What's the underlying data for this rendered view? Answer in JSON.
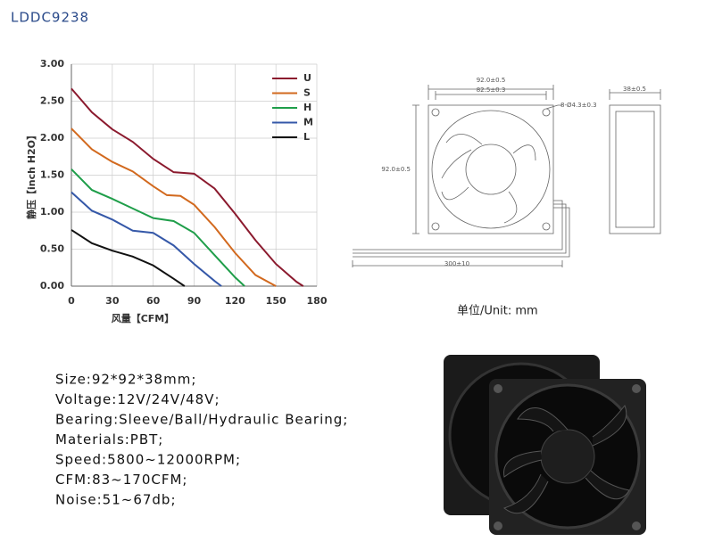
{
  "header": {
    "title": "LDDC9238"
  },
  "chart_data": {
    "type": "line",
    "xlabel": "风量【CFM】",
    "ylabel": "静压【inch H2O】",
    "xlim": [
      0,
      180
    ],
    "xticks": [
      0,
      30,
      60,
      90,
      120,
      150,
      180
    ],
    "ylim": [
      0,
      3
    ],
    "yticks": [
      {
        "value": 0,
        "label": "0.00"
      },
      {
        "value": 0.5,
        "label": "0.50"
      },
      {
        "value": 1,
        "label": "1.00"
      },
      {
        "value": 1.5,
        "label": "1.50"
      },
      {
        "value": 2,
        "label": "2.00"
      },
      {
        "value": 2.5,
        "label": "2.50"
      },
      {
        "value": 3,
        "label": "3.00"
      }
    ],
    "grid": true,
    "series": [
      {
        "name": "U",
        "color": "#8b1a2e",
        "x": [
          0,
          15,
          30,
          45,
          60,
          75,
          90,
          105,
          120,
          135,
          150,
          165,
          170
        ],
        "values": [
          2.67,
          2.35,
          2.12,
          1.95,
          1.72,
          1.54,
          1.52,
          1.32,
          0.98,
          0.62,
          0.3,
          0.06,
          0
        ]
      },
      {
        "name": "S",
        "color": "#d2691e",
        "x": [
          0,
          15,
          30,
          45,
          60,
          70,
          80,
          90,
          105,
          120,
          135,
          150
        ],
        "values": [
          2.13,
          1.85,
          1.68,
          1.55,
          1.35,
          1.23,
          1.22,
          1.1,
          0.8,
          0.45,
          0.15,
          0
        ]
      },
      {
        "name": "H",
        "color": "#1f9e4a",
        "x": [
          0,
          15,
          30,
          45,
          60,
          75,
          90,
          105,
          120,
          127
        ],
        "values": [
          1.58,
          1.3,
          1.18,
          1.05,
          0.92,
          0.88,
          0.72,
          0.42,
          0.12,
          0
        ]
      },
      {
        "name": "M",
        "color": "#3558a8",
        "x": [
          0,
          15,
          30,
          45,
          60,
          75,
          90,
          105,
          110
        ],
        "values": [
          1.27,
          1.02,
          0.9,
          0.75,
          0.72,
          0.55,
          0.3,
          0.07,
          0
        ]
      },
      {
        "name": "L",
        "color": "#111111",
        "x": [
          0,
          15,
          30,
          45,
          60,
          75,
          83
        ],
        "values": [
          0.76,
          0.58,
          0.48,
          0.4,
          0.28,
          0.1,
          0
        ]
      }
    ]
  },
  "drawing": {
    "width_outer": "92.0±0.5",
    "hole_pitch": "82.5±0.3",
    "holes": "8-Ø4.3±0.3",
    "height": "92.0±0.5",
    "depth": "38±0.5",
    "cable": "300±10",
    "unit": "单位/Unit: mm"
  },
  "specs": [
    "Size:92*92*38mm;",
    "Voltage:12V/24V/48V;",
    "Bearing:Sleeve/Ball/Hydraulic Bearing;",
    "Materials:PBT;",
    "Speed:5800~12000RPM;",
    "CFM:83~170CFM;",
    "Noise:51~67db;"
  ]
}
